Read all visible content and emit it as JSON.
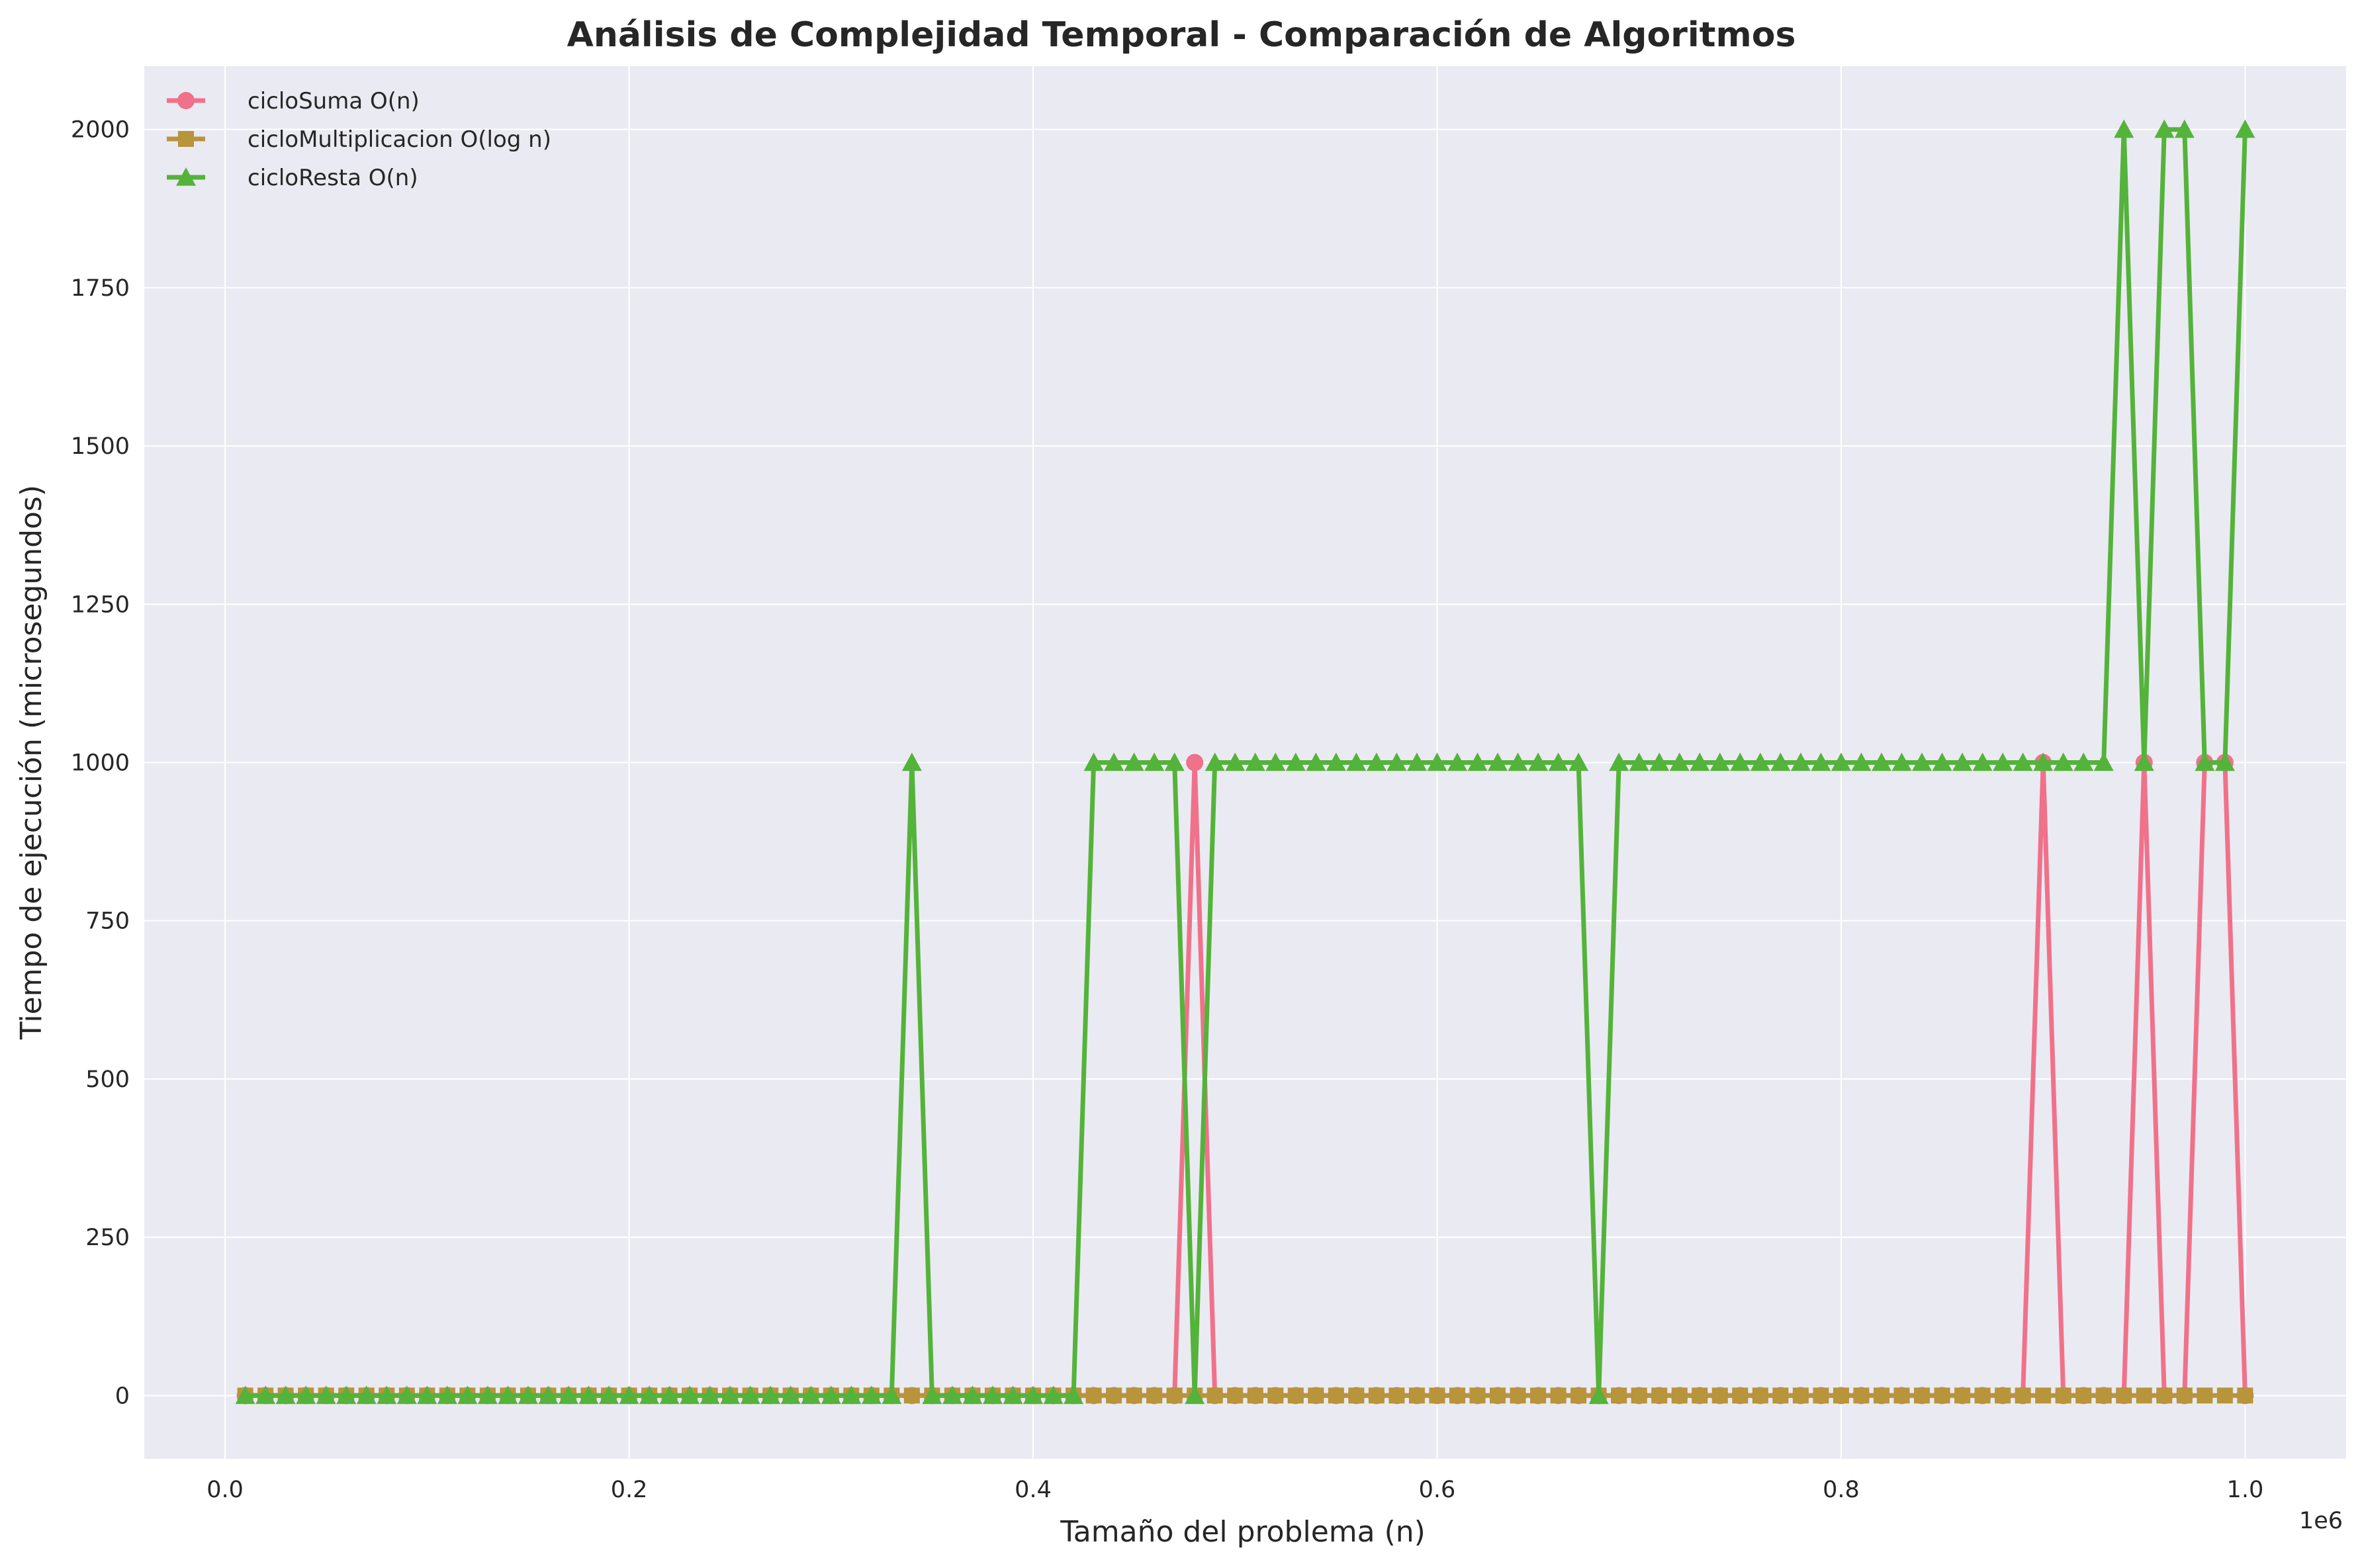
{
  "chart_data": {
    "type": "line",
    "title": "Análisis de Complejidad Temporal - Comparación de Algoritmos",
    "xlabel": "Tamaño del problema (n)",
    "ylabel": "Tiempo de ejecución (microsegundos)",
    "x_offset_label": "1e6",
    "xlim": [
      -40000,
      1050000
    ],
    "ylim": [
      -100,
      2100
    ],
    "x_ticks": [
      0,
      200000,
      400000,
      600000,
      800000,
      1000000
    ],
    "x_tick_labels": [
      "0.0",
      "0.2",
      "0.4",
      "0.6",
      "0.8",
      "1.0"
    ],
    "y_ticks": [
      0,
      250,
      500,
      750,
      1000,
      1250,
      1500,
      1750,
      2000
    ],
    "y_tick_labels": [
      "0",
      "250",
      "500",
      "750",
      "1000",
      "1250",
      "1500",
      "1750",
      "2000"
    ],
    "grid": true,
    "legend_position": "top-left",
    "background": "#eaeaf2",
    "x": [
      10000,
      20000,
      30000,
      40000,
      50000,
      60000,
      70000,
      80000,
      90000,
      100000,
      110000,
      120000,
      130000,
      140000,
      150000,
      160000,
      170000,
      180000,
      190000,
      200000,
      210000,
      220000,
      230000,
      240000,
      250000,
      260000,
      270000,
      280000,
      290000,
      300000,
      310000,
      320000,
      330000,
      340000,
      350000,
      360000,
      370000,
      380000,
      390000,
      400000,
      410000,
      420000,
      430000,
      440000,
      450000,
      460000,
      470000,
      480000,
      490000,
      500000,
      510000,
      520000,
      530000,
      540000,
      550000,
      560000,
      570000,
      580000,
      590000,
      600000,
      610000,
      620000,
      630000,
      640000,
      650000,
      660000,
      670000,
      680000,
      690000,
      700000,
      710000,
      720000,
      730000,
      740000,
      750000,
      760000,
      770000,
      780000,
      790000,
      800000,
      810000,
      820000,
      830000,
      840000,
      850000,
      860000,
      870000,
      880000,
      890000,
      900000,
      910000,
      920000,
      930000,
      940000,
      950000,
      960000,
      970000,
      980000,
      990000,
      1000000
    ],
    "series": [
      {
        "name": "cicloSuma O(n)",
        "color": "#f0718a",
        "marker": "circle",
        "values": [
          0,
          0,
          0,
          0,
          0,
          0,
          0,
          0,
          0,
          0,
          0,
          0,
          0,
          0,
          0,
          0,
          0,
          0,
          0,
          0,
          0,
          0,
          0,
          0,
          0,
          0,
          0,
          0,
          0,
          0,
          0,
          0,
          0,
          0,
          0,
          0,
          0,
          0,
          0,
          0,
          0,
          0,
          0,
          0,
          0,
          0,
          0,
          1000,
          0,
          0,
          0,
          0,
          0,
          0,
          0,
          0,
          0,
          0,
          0,
          0,
          0,
          0,
          0,
          0,
          0,
          0,
          0,
          0,
          0,
          0,
          0,
          0,
          0,
          0,
          0,
          0,
          0,
          0,
          0,
          0,
          0,
          0,
          0,
          0,
          0,
          0,
          0,
          0,
          0,
          1000,
          0,
          0,
          0,
          0,
          1000,
          0,
          0,
          1000,
          1000,
          0
        ]
      },
      {
        "name": "cicloMultiplicacion O(log n)",
        "color": "#b8943a",
        "marker": "square",
        "values": [
          0,
          0,
          0,
          0,
          0,
          0,
          0,
          0,
          0,
          0,
          0,
          0,
          0,
          0,
          0,
          0,
          0,
          0,
          0,
          0,
          0,
          0,
          0,
          0,
          0,
          0,
          0,
          0,
          0,
          0,
          0,
          0,
          0,
          0,
          0,
          0,
          0,
          0,
          0,
          0,
          0,
          0,
          0,
          0,
          0,
          0,
          0,
          0,
          0,
          0,
          0,
          0,
          0,
          0,
          0,
          0,
          0,
          0,
          0,
          0,
          0,
          0,
          0,
          0,
          0,
          0,
          0,
          0,
          0,
          0,
          0,
          0,
          0,
          0,
          0,
          0,
          0,
          0,
          0,
          0,
          0,
          0,
          0,
          0,
          0,
          0,
          0,
          0,
          0,
          0,
          0,
          0,
          0,
          0,
          0,
          0,
          0,
          0,
          0,
          0
        ]
      },
      {
        "name": "cicloResta O(n)",
        "color": "#54b33a",
        "marker": "triangle",
        "values": [
          0,
          0,
          0,
          0,
          0,
          0,
          0,
          0,
          0,
          0,
          0,
          0,
          0,
          0,
          0,
          0,
          0,
          0,
          0,
          0,
          0,
          0,
          0,
          0,
          0,
          0,
          0,
          0,
          0,
          0,
          0,
          0,
          0,
          1000,
          0,
          0,
          0,
          0,
          0,
          0,
          0,
          0,
          1000,
          1000,
          1000,
          1000,
          1000,
          0,
          1000,
          1000,
          1000,
          1000,
          1000,
          1000,
          1000,
          1000,
          1000,
          1000,
          1000,
          1000,
          1000,
          1000,
          1000,
          1000,
          1000,
          1000,
          1000,
          0,
          1000,
          1000,
          1000,
          1000,
          1000,
          1000,
          1000,
          1000,
          1000,
          1000,
          1000,
          1000,
          1000,
          1000,
          1000,
          1000,
          1000,
          1000,
          1000,
          1000,
          1000,
          1000,
          1000,
          1000,
          1000,
          2000,
          1000,
          2000,
          2000,
          1000,
          1000,
          2000
        ]
      }
    ]
  }
}
